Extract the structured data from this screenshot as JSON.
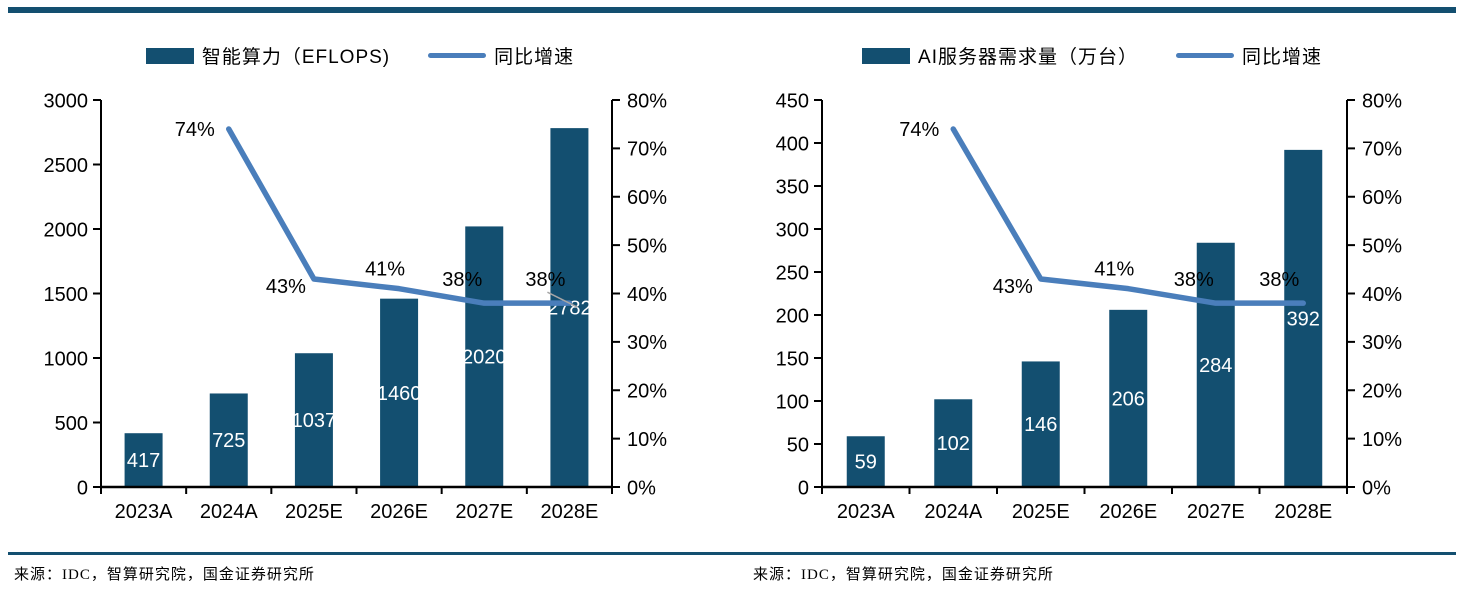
{
  "colors": {
    "bar": "#134F70",
    "line": "#4A7EBB",
    "leader": "#A6A6A6",
    "rule": "#134F70",
    "axis": "#000000",
    "bar_label": "#FFFFFF",
    "text": "#000000"
  },
  "chart_data": [
    {
      "type": "combo",
      "title": "",
      "categories": [
        "2023A",
        "2024A",
        "2025E",
        "2026E",
        "2027E",
        "2028E"
      ],
      "bar_series": {
        "name": "智能算力（EFLOPS)",
        "axis": "left",
        "values": [
          417,
          725,
          1037,
          1460,
          2020,
          2782
        ],
        "labels": [
          "417",
          "725",
          "1037",
          "1460",
          "2020",
          "2782"
        ]
      },
      "line_series": {
        "name": "同比增速",
        "axis": "right",
        "values_pct": [
          null,
          74,
          43,
          41,
          38,
          38
        ],
        "labels": [
          "74%",
          "43%",
          "41%",
          "38%",
          "38%"
        ]
      },
      "left_axis": {
        "min": 0,
        "max": 3000,
        "step": 500,
        "ticks": [
          "0",
          "500",
          "1000",
          "1500",
          "2000",
          "2500",
          "3000"
        ]
      },
      "right_axis": {
        "min_pct": 0,
        "max_pct": 80,
        "step_pct": 10,
        "ticks": [
          "0%",
          "10%",
          "20%",
          "30%",
          "40%",
          "50%",
          "60%",
          "70%",
          "80%"
        ]
      },
      "grid": false,
      "legend_position": "top",
      "has_leader_line": true,
      "source": "来源：IDC，智算研究院，国金证券研究所"
    },
    {
      "type": "combo",
      "title": "",
      "categories": [
        "2023A",
        "2024A",
        "2025E",
        "2026E",
        "2027E",
        "2028E"
      ],
      "bar_series": {
        "name": "AI服务器需求量（万台）",
        "axis": "left",
        "values": [
          59,
          102,
          146,
          206,
          284,
          392
        ],
        "labels": [
          "59",
          "102",
          "146",
          "206",
          "284",
          "392"
        ]
      },
      "line_series": {
        "name": "同比增速",
        "axis": "right",
        "values_pct": [
          null,
          74,
          43,
          41,
          38,
          38
        ],
        "labels": [
          "74%",
          "43%",
          "41%",
          "38%",
          "38%"
        ]
      },
      "left_axis": {
        "min": 0,
        "max": 450,
        "step": 50,
        "ticks": [
          "0",
          "50",
          "100",
          "150",
          "200",
          "250",
          "300",
          "350",
          "400",
          "450"
        ]
      },
      "right_axis": {
        "min_pct": 0,
        "max_pct": 80,
        "step_pct": 10,
        "ticks": [
          "0%",
          "10%",
          "20%",
          "30%",
          "40%",
          "50%",
          "60%",
          "70%",
          "80%"
        ]
      },
      "grid": false,
      "legend_position": "top",
      "has_leader_line": false,
      "source": "来源：IDC，智算研究院，国金证券研究所"
    }
  ]
}
